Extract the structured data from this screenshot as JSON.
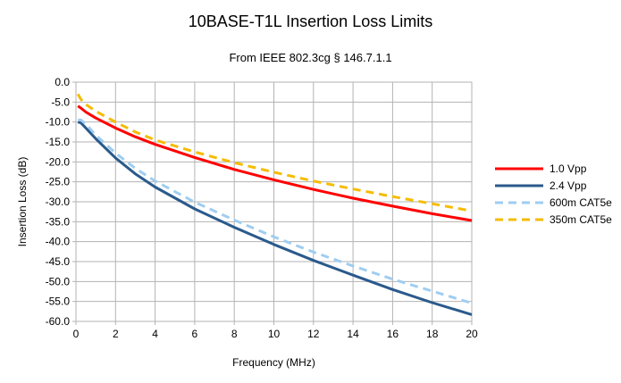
{
  "chart_data": {
    "type": "line",
    "title": "10BASE-T1L Insertion Loss Limits",
    "subtitle": "From IEEE 802.3cg § 146.7.1.1",
    "xlabel": "Frequency (MHz)",
    "ylabel": "Insertion Loss (dB)",
    "xlim": [
      0,
      20
    ],
    "ylim": [
      -60,
      0
    ],
    "xticks": [
      "0",
      "2",
      "4",
      "6",
      "8",
      "10",
      "12",
      "14",
      "16",
      "18",
      "20"
    ],
    "yticks": [
      "0.0",
      "-5.0",
      "-10.0",
      "-15.0",
      "-20.0",
      "-25.0",
      "-30.0",
      "-35.0",
      "-40.0",
      "-45.0",
      "-50.0",
      "-55.0",
      "-60.0"
    ],
    "grid": true,
    "legend_position": "right",
    "x": [
      0.1,
      0.25,
      0.5,
      1,
      2,
      3,
      4,
      6,
      8,
      10,
      12,
      14,
      16,
      18,
      20
    ],
    "series": [
      {
        "name": "1.0 Vpp",
        "color": "#ff0000",
        "style": "solid",
        "values": [
          -6.0,
          -6.5,
          -7.5,
          -9.0,
          -11.5,
          -13.7,
          -15.6,
          -18.9,
          -21.9,
          -24.5,
          -26.9,
          -29.1,
          -31.1,
          -33.0,
          -34.7
        ]
      },
      {
        "name": "2.4 Vpp",
        "color": "#2a5a8c",
        "style": "solid",
        "values": [
          -10.0,
          -10.2,
          -11.5,
          -14.2,
          -19.0,
          -23.0,
          -26.3,
          -31.8,
          -36.4,
          -40.7,
          -44.7,
          -48.4,
          -52.0,
          -55.3,
          -58.3
        ]
      },
      {
        "name": "600m CAT5e",
        "color": "#9fcdf0",
        "style": "dashed",
        "values": [
          -9.5,
          -9.5,
          -10.5,
          -13.3,
          -17.8,
          -21.6,
          -24.8,
          -30.1,
          -34.6,
          -38.8,
          -42.6,
          -46.1,
          -49.4,
          -52.4,
          -55.4
        ]
      },
      {
        "name": "350m CAT5e",
        "color": "#f5bc00",
        "style": "dashed",
        "values": [
          -3.0,
          -4.3,
          -5.6,
          -7.3,
          -10.0,
          -12.5,
          -14.5,
          -17.5,
          -20.2,
          -22.6,
          -24.8,
          -26.8,
          -28.7,
          -30.5,
          -32.3
        ]
      }
    ]
  }
}
